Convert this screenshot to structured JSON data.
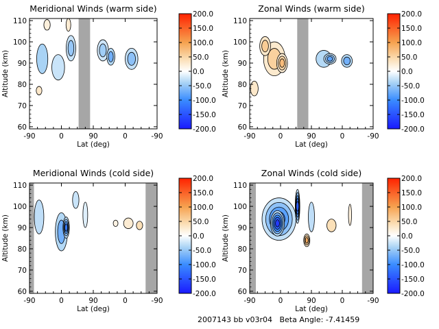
{
  "figure": {
    "footer": "2007143 bb v03r04   Beta Angle: -7.41459"
  },
  "colorbar": {
    "range": [
      -200,
      200
    ],
    "tick_labels": [
      "200.0",
      "150.0",
      "100.0",
      "50.0",
      "0.0",
      "-50.0",
      "-100.0",
      "-150.0",
      "-200.0"
    ],
    "colors": {
      "min": "#0000ff",
      "zero": "#ffffff",
      "max": "#ff0000"
    }
  },
  "chart_data": [
    {
      "type": "heatmap",
      "title": "Meridional Winds (warm side)",
      "xlabel": "Lat (deg)",
      "ylabel": "Altitude (km)",
      "x_tick_labels": [
        "-90",
        "0",
        "90",
        "0",
        "-90"
      ],
      "y_tick_labels": [
        "60",
        "70",
        "80",
        "90",
        "100",
        "110"
      ],
      "ylim": [
        59,
        111
      ],
      "no_data_bands": [
        [
          1.54,
          1.9
        ]
      ],
      "blobs": [
        {
          "x": 0.4,
          "y": 92,
          "w": 0.35,
          "h": 14,
          "value": -40
        },
        {
          "x": 0.3,
          "y": 77,
          "w": 0.18,
          "h": 4,
          "value": 30
        },
        {
          "x": 0.9,
          "y": 88,
          "w": 0.4,
          "h": 12,
          "value": -25
        },
        {
          "x": 1.3,
          "y": 97,
          "w": 0.3,
          "h": 12,
          "value": -50
        },
        {
          "x": 1.22,
          "y": 108,
          "w": 0.15,
          "h": 6,
          "value": 25
        },
        {
          "x": 2.3,
          "y": 96,
          "w": 0.35,
          "h": 10,
          "value": -45
        },
        {
          "x": 2.55,
          "y": 93,
          "w": 0.25,
          "h": 8,
          "value": -70
        },
        {
          "x": 3.2,
          "y": 92,
          "w": 0.4,
          "h": 10,
          "value": -55
        },
        {
          "x": 0.55,
          "y": 108,
          "w": 0.2,
          "h": 5,
          "value": 20
        }
      ]
    },
    {
      "type": "heatmap",
      "title": "Zonal Winds (warm side)",
      "xlabel": "Lat (deg)",
      "ylabel": "Altitude (km)",
      "x_tick_labels": [
        "-90",
        "0",
        "90",
        "0",
        "-90"
      ],
      "y_tick_labels": [
        "60",
        "70",
        "80",
        "90",
        "100",
        "110"
      ],
      "ylim": [
        59,
        111
      ],
      "no_data_bands": [
        [
          1.54,
          1.9
        ]
      ],
      "blobs": [
        {
          "x": 0.8,
          "y": 92,
          "w": 0.7,
          "h": 16,
          "value": 55
        },
        {
          "x": 1.05,
          "y": 90,
          "w": 0.35,
          "h": 9,
          "value": 75
        },
        {
          "x": 0.5,
          "y": 98,
          "w": 0.35,
          "h": 9,
          "value": 60
        },
        {
          "x": 0.15,
          "y": 78,
          "w": 0.25,
          "h": 7,
          "value": 30
        },
        {
          "x": 2.4,
          "y": 92,
          "w": 0.5,
          "h": 8,
          "value": -35
        },
        {
          "x": 2.6,
          "y": 92,
          "w": 0.4,
          "h": 5,
          "value": -80
        },
        {
          "x": 3.15,
          "y": 91,
          "w": 0.35,
          "h": 6,
          "value": -70
        }
      ]
    },
    {
      "type": "heatmap",
      "title": "Meridional Winds (cold side)",
      "xlabel": "Lat (deg)",
      "ylabel": "Altitude (km)",
      "x_tick_labels": [
        "-90",
        "0",
        "90",
        "0",
        "-90"
      ],
      "y_tick_labels": [
        "60",
        "70",
        "80",
        "90",
        "100",
        "110"
      ],
      "ylim": [
        59,
        111
      ],
      "no_data_bands": [
        [
          0,
          0.14
        ],
        [
          3.64,
          4
        ]
      ],
      "blobs": [
        {
          "x": 0.3,
          "y": 95,
          "w": 0.3,
          "h": 16,
          "value": -30
        },
        {
          "x": 1.0,
          "y": 88,
          "w": 0.38,
          "h": 18,
          "value": -70
        },
        {
          "x": 1.15,
          "y": 90,
          "w": 0.2,
          "h": 10,
          "value": -115
        },
        {
          "x": 1.45,
          "y": 103,
          "w": 0.2,
          "h": 8,
          "value": -25
        },
        {
          "x": 1.75,
          "y": 96,
          "w": 0.15,
          "h": 12,
          "value": -15
        },
        {
          "x": 3.1,
          "y": 92,
          "w": 0.3,
          "h": 5,
          "value": 25
        },
        {
          "x": 3.45,
          "y": 91,
          "w": 0.2,
          "h": 4,
          "value": 40
        },
        {
          "x": 2.7,
          "y": 92,
          "w": 0.15,
          "h": 3,
          "value": 15
        }
      ]
    },
    {
      "type": "heatmap",
      "title": "Zonal Winds (cold side)",
      "xlabel": "Lat (deg)",
      "ylabel": "Altitude (km)",
      "x_tick_labels": [
        "-90",
        "0",
        "90",
        "0",
        "-90"
      ],
      "y_tick_labels": [
        "60",
        "70",
        "80",
        "90",
        "100",
        "110"
      ],
      "ylim": [
        59,
        111
      ],
      "no_data_bands": [
        [
          0,
          0.2
        ],
        [
          3.64,
          4
        ]
      ],
      "blobs": [
        {
          "x": 0.95,
          "y": 94,
          "w": 1.1,
          "h": 20,
          "value": -110
        },
        {
          "x": 0.9,
          "y": 92,
          "w": 0.45,
          "h": 12,
          "value": -170
        },
        {
          "x": 1.55,
          "y": 100,
          "w": 0.15,
          "h": 16,
          "value": -140
        },
        {
          "x": 2.0,
          "y": 95,
          "w": 0.2,
          "h": 14,
          "value": -30
        },
        {
          "x": 1.85,
          "y": 84,
          "w": 0.2,
          "h": 6,
          "value": 90
        },
        {
          "x": 2.65,
          "y": 91,
          "w": 0.3,
          "h": 6,
          "value": 40
        },
        {
          "x": 3.25,
          "y": 96,
          "w": 0.1,
          "h": 10,
          "value": 20
        }
      ]
    }
  ]
}
